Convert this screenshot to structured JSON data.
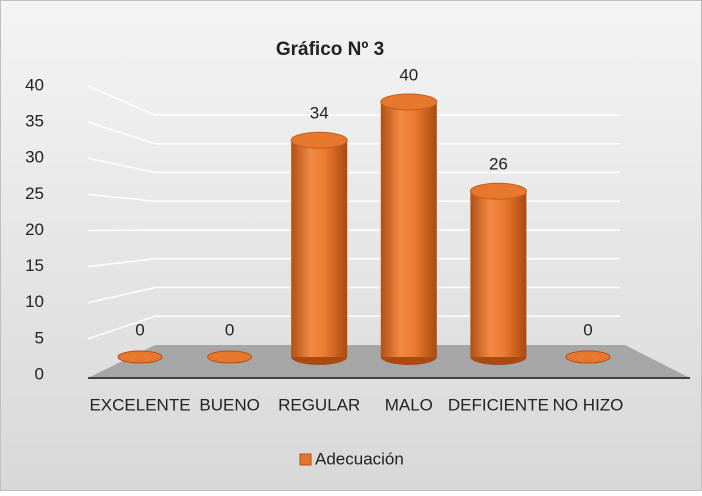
{
  "chart_data": {
    "type": "bar",
    "title": "Gráfico Nº 3",
    "categories": [
      "EXCELENTE",
      "BUENO",
      "REGULAR",
      "MALO",
      "DEFICIENTE",
      "NO HIZO"
    ],
    "series": [
      {
        "name": "Adecuación",
        "color": "#e8772e",
        "values": [
          0,
          0,
          34,
          40,
          26,
          0
        ]
      }
    ],
    "ylim": [
      0,
      40
    ],
    "yticks": [
      0,
      5,
      10,
      15,
      20,
      25,
      30,
      35,
      40
    ],
    "grid": true,
    "legend": "bottom"
  }
}
